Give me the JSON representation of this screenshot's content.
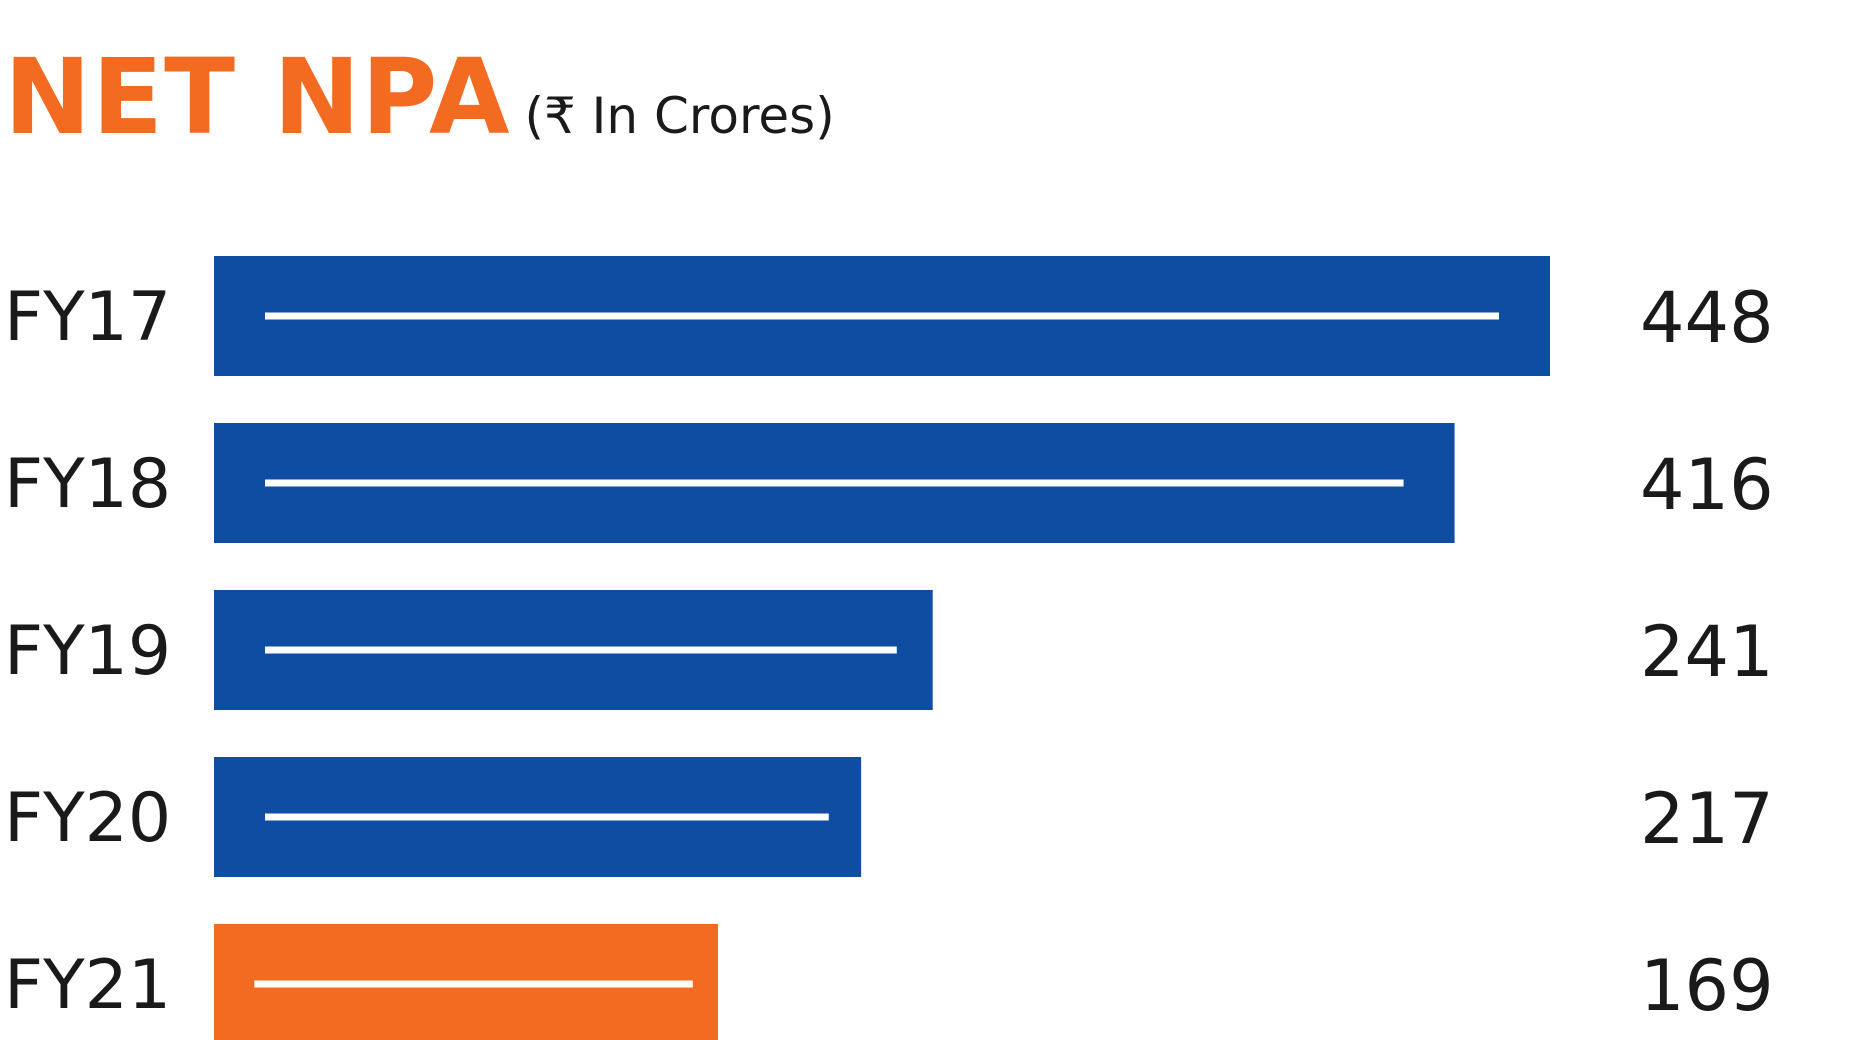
{
  "chart_data": {
    "type": "bar",
    "orientation": "horizontal",
    "title": "NET NPA",
    "subtitle": "(₹ In Crores)",
    "categories": [
      "FY17",
      "FY18",
      "FY19",
      "FY20",
      "FY21"
    ],
    "values": [
      448,
      416,
      241,
      217,
      169
    ],
    "data_labels": [
      "448",
      "416",
      "241",
      "217",
      "169"
    ],
    "xlabel": "",
    "ylabel": "",
    "grid": false,
    "legend": "none",
    "colors": {
      "default_bar": "#0E4DA1",
      "highlight_bar": "#F26B21",
      "bar_stripe": "#FFFFFF"
    },
    "highlight_category": "FY21"
  }
}
